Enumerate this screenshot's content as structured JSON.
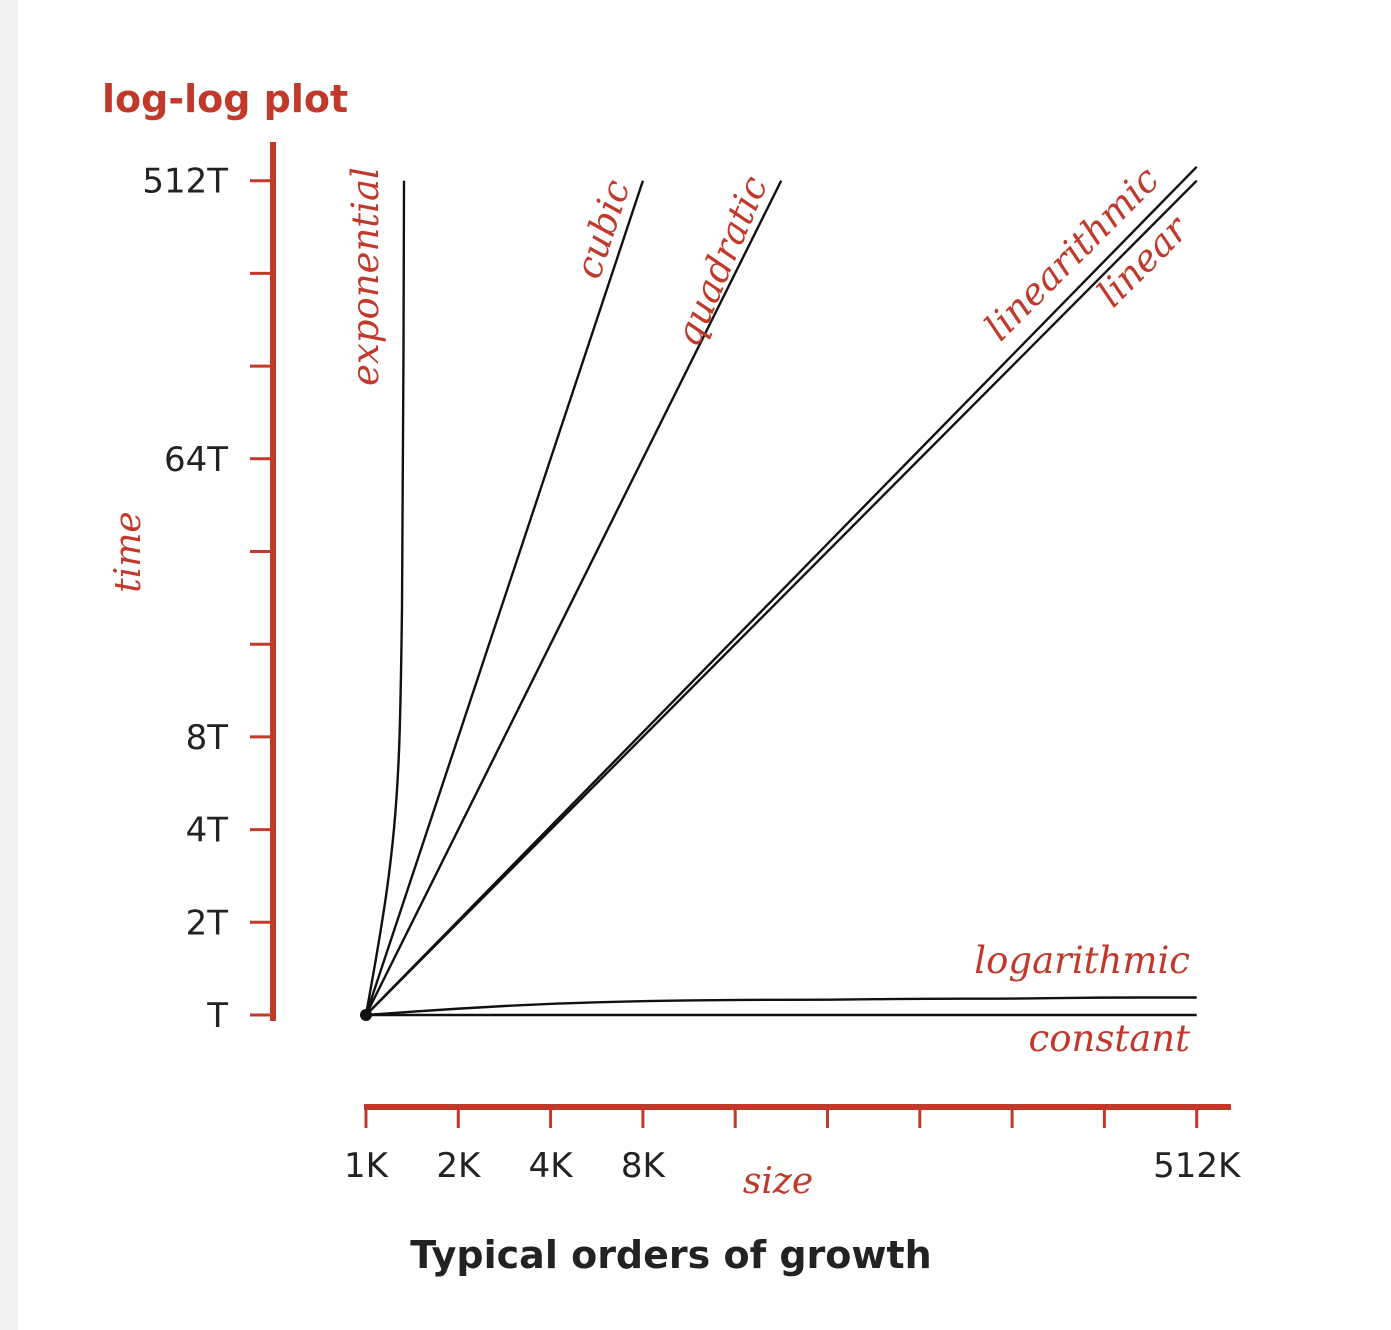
{
  "colors": {
    "accent": "#c0392b",
    "ink": "#111111",
    "text": "#222222"
  },
  "plot_title": "log-log plot",
  "caption": "Typical orders of growth",
  "chart_data": {
    "type": "line",
    "title": "log-log plot",
    "xlabel": "size",
    "ylabel": "time",
    "x_scale": "log2",
    "y_scale": "log2",
    "x_ticks": [
      {
        "value": 1,
        "label": "1K"
      },
      {
        "value": 2,
        "label": "2K"
      },
      {
        "value": 4,
        "label": "4K"
      },
      {
        "value": 8,
        "label": "8K"
      },
      {
        "value": 16,
        "label": ""
      },
      {
        "value": 32,
        "label": ""
      },
      {
        "value": 64,
        "label": ""
      },
      {
        "value": 128,
        "label": ""
      },
      {
        "value": 256,
        "label": ""
      },
      {
        "value": 512,
        "label": "512K"
      }
    ],
    "y_ticks": [
      {
        "value": 1,
        "label": "T"
      },
      {
        "value": 2,
        "label": "2T"
      },
      {
        "value": 4,
        "label": "4T"
      },
      {
        "value": 8,
        "label": "8T"
      },
      {
        "value": 16,
        "label": ""
      },
      {
        "value": 32,
        "label": ""
      },
      {
        "value": 64,
        "label": "64T"
      },
      {
        "value": 128,
        "label": ""
      },
      {
        "value": 256,
        "label": ""
      },
      {
        "value": 512,
        "label": "512T"
      }
    ],
    "xlim": [
      1,
      512
    ],
    "ylim": [
      1,
      512
    ],
    "series": [
      {
        "name": "constant",
        "x": [
          1,
          512
        ],
        "y": [
          1,
          1
        ]
      },
      {
        "name": "logarithmic",
        "x": [
          1,
          2,
          4,
          8,
          16,
          32,
          64,
          128,
          256,
          512
        ],
        "y": [
          1,
          1.05,
          1.09,
          1.11,
          1.12,
          1.12,
          1.13,
          1.13,
          1.14,
          1.14
        ]
      },
      {
        "name": "linear",
        "x": [
          1,
          512
        ],
        "y": [
          1,
          512
        ]
      },
      {
        "name": "linearithmic",
        "x": [
          1,
          512
        ],
        "y": [
          1,
          568
        ]
      },
      {
        "name": "quadratic",
        "x": [
          1,
          22.6
        ],
        "y": [
          1,
          512
        ]
      },
      {
        "name": "cubic",
        "x": [
          1,
          8
        ],
        "y": [
          1,
          512
        ]
      },
      {
        "name": "exponential",
        "x": [
          1,
          1.1,
          1.2,
          1.27,
          1.3,
          1.32,
          1.33
        ],
        "y": [
          1,
          1.7,
          3.0,
          5.5,
          11,
          40,
          512
        ]
      }
    ]
  }
}
